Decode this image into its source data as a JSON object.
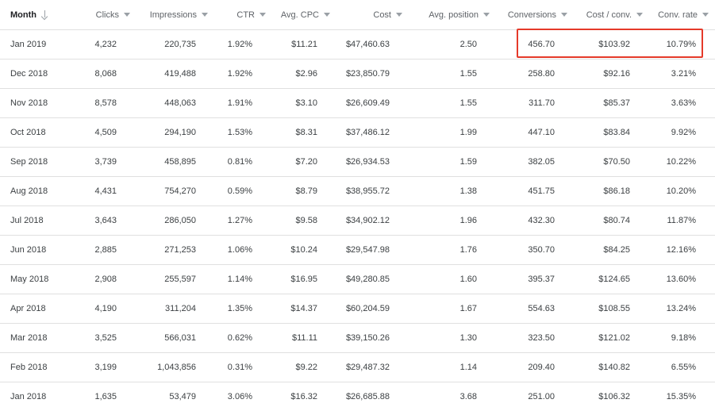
{
  "columns": [
    {
      "key": "month",
      "label": "Month"
    },
    {
      "key": "clicks",
      "label": "Clicks"
    },
    {
      "key": "impressions",
      "label": "Impressions"
    },
    {
      "key": "ctr",
      "label": "CTR"
    },
    {
      "key": "avg_cpc",
      "label": "Avg. CPC"
    },
    {
      "key": "cost",
      "label": "Cost"
    },
    {
      "key": "avg_position",
      "label": "Avg. position"
    },
    {
      "key": "conversions",
      "label": "Conversions"
    },
    {
      "key": "cost_per_conv",
      "label": "Cost / conv."
    },
    {
      "key": "conv_rate",
      "label": "Conv. rate"
    }
  ],
  "rows": [
    [
      "Jan 2019",
      "4,232",
      "220,735",
      "1.92%",
      "$11.21",
      "$47,460.63",
      "2.50",
      "456.70",
      "$103.92",
      "10.79%"
    ],
    [
      "Dec 2018",
      "8,068",
      "419,488",
      "1.92%",
      "$2.96",
      "$23,850.79",
      "1.55",
      "258.80",
      "$92.16",
      "3.21%"
    ],
    [
      "Nov 2018",
      "8,578",
      "448,063",
      "1.91%",
      "$3.10",
      "$26,609.49",
      "1.55",
      "311.70",
      "$85.37",
      "3.63%"
    ],
    [
      "Oct 2018",
      "4,509",
      "294,190",
      "1.53%",
      "$8.31",
      "$37,486.12",
      "1.99",
      "447.10",
      "$83.84",
      "9.92%"
    ],
    [
      "Sep 2018",
      "3,739",
      "458,895",
      "0.81%",
      "$7.20",
      "$26,934.53",
      "1.59",
      "382.05",
      "$70.50",
      "10.22%"
    ],
    [
      "Aug 2018",
      "4,431",
      "754,270",
      "0.59%",
      "$8.79",
      "$38,955.72",
      "1.38",
      "451.75",
      "$86.18",
      "10.20%"
    ],
    [
      "Jul 2018",
      "3,643",
      "286,050",
      "1.27%",
      "$9.58",
      "$34,902.12",
      "1.96",
      "432.30",
      "$80.74",
      "11.87%"
    ],
    [
      "Jun 2018",
      "2,885",
      "271,253",
      "1.06%",
      "$10.24",
      "$29,547.98",
      "1.76",
      "350.70",
      "$84.25",
      "12.16%"
    ],
    [
      "May 2018",
      "2,908",
      "255,597",
      "1.14%",
      "$16.95",
      "$49,280.85",
      "1.60",
      "395.37",
      "$124.65",
      "13.60%"
    ],
    [
      "Apr 2018",
      "4,190",
      "311,204",
      "1.35%",
      "$14.37",
      "$60,204.59",
      "1.67",
      "554.63",
      "$108.55",
      "13.24%"
    ],
    [
      "Mar 2018",
      "3,525",
      "566,031",
      "0.62%",
      "$11.11",
      "$39,150.26",
      "1.30",
      "323.50",
      "$121.02",
      "9.18%"
    ],
    [
      "Feb 2018",
      "3,199",
      "1,043,856",
      "0.31%",
      "$9.22",
      "$29,487.32",
      "1.14",
      "209.40",
      "$140.82",
      "6.55%"
    ],
    [
      "Jan 2018",
      "1,635",
      "53,479",
      "3.06%",
      "$16.32",
      "$26,685.88",
      "3.68",
      "251.00",
      "$106.32",
      "15.35%"
    ]
  ],
  "icons": {
    "month_sort": "arrow-down-icon",
    "column_sort": "caret-down-icon"
  },
  "colors": {
    "highlight": "#e53a2a",
    "divider": "#e0e0e0",
    "text": "#3c4043",
    "header_text": "#5f6368"
  }
}
